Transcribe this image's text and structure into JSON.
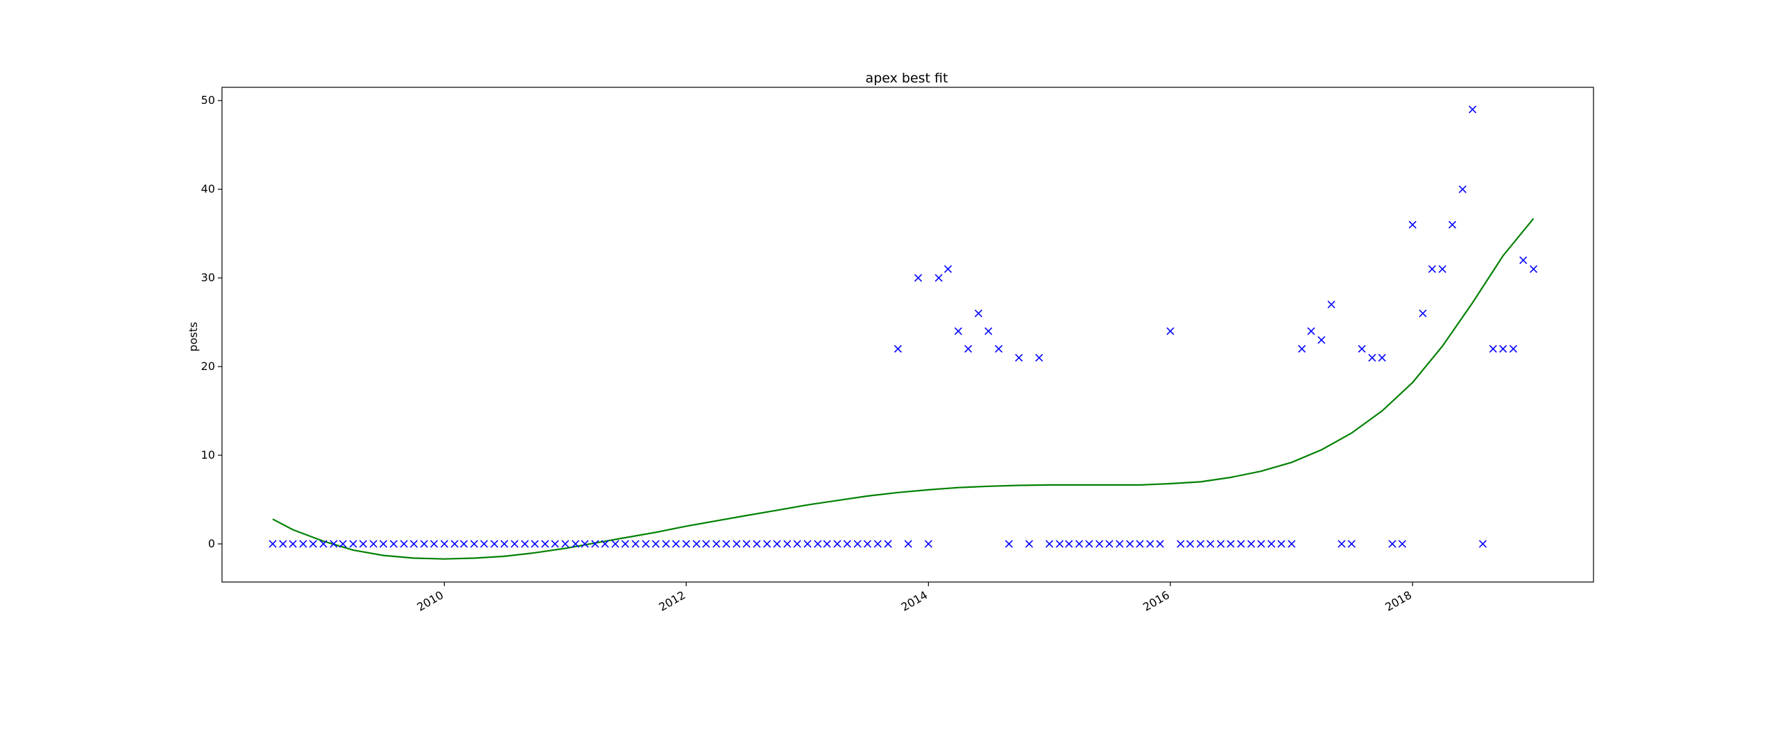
{
  "chart_data": {
    "type": "scatter",
    "title": "apex best fit",
    "xlabel": "",
    "ylabel": "posts",
    "x_axis_kind": "date",
    "xlim": [
      "2008-03-01",
      "2019-07-01"
    ],
    "ylim": [
      -4.3,
      51.5
    ],
    "x_ticks": [
      {
        "value": "2010-01-01",
        "label": "2010"
      },
      {
        "value": "2012-01-01",
        "label": "2012"
      },
      {
        "value": "2014-01-01",
        "label": "2014"
      },
      {
        "value": "2016-01-01",
        "label": "2016"
      },
      {
        "value": "2018-01-01",
        "label": "2018"
      }
    ],
    "y_ticks": [
      0,
      10,
      20,
      30,
      40,
      50
    ],
    "grid": false,
    "legend": null,
    "series": [
      {
        "kind": "scatter",
        "marker": "x",
        "color": "#0000ff",
        "points": [
          [
            "2008-08-01",
            0
          ],
          [
            "2008-09-01",
            0
          ],
          [
            "2008-10-01",
            0
          ],
          [
            "2008-11-01",
            0
          ],
          [
            "2008-12-01",
            0
          ],
          [
            "2009-01-01",
            0
          ],
          [
            "2009-02-01",
            0
          ],
          [
            "2009-03-01",
            0
          ],
          [
            "2009-04-01",
            0
          ],
          [
            "2009-05-01",
            0
          ],
          [
            "2009-06-01",
            0
          ],
          [
            "2009-07-01",
            0
          ],
          [
            "2009-08-01",
            0
          ],
          [
            "2009-09-01",
            0
          ],
          [
            "2009-10-01",
            0
          ],
          [
            "2009-11-01",
            0
          ],
          [
            "2009-12-01",
            0
          ],
          [
            "2010-01-01",
            0
          ],
          [
            "2010-02-01",
            0
          ],
          [
            "2010-03-01",
            0
          ],
          [
            "2010-04-01",
            0
          ],
          [
            "2010-05-01",
            0
          ],
          [
            "2010-06-01",
            0
          ],
          [
            "2010-07-01",
            0
          ],
          [
            "2010-08-01",
            0
          ],
          [
            "2010-09-01",
            0
          ],
          [
            "2010-10-01",
            0
          ],
          [
            "2010-11-01",
            0
          ],
          [
            "2010-12-01",
            0
          ],
          [
            "2011-01-01",
            0
          ],
          [
            "2011-02-01",
            0
          ],
          [
            "2011-03-01",
            0
          ],
          [
            "2011-04-01",
            0
          ],
          [
            "2011-05-01",
            0
          ],
          [
            "2011-06-01",
            0
          ],
          [
            "2011-07-01",
            0
          ],
          [
            "2011-08-01",
            0
          ],
          [
            "2011-09-01",
            0
          ],
          [
            "2011-10-01",
            0
          ],
          [
            "2011-11-01",
            0
          ],
          [
            "2011-12-01",
            0
          ],
          [
            "2012-01-01",
            0
          ],
          [
            "2012-02-01",
            0
          ],
          [
            "2012-03-01",
            0
          ],
          [
            "2012-04-01",
            0
          ],
          [
            "2012-05-01",
            0
          ],
          [
            "2012-06-01",
            0
          ],
          [
            "2012-07-01",
            0
          ],
          [
            "2012-08-01",
            0
          ],
          [
            "2012-09-01",
            0
          ],
          [
            "2012-10-01",
            0
          ],
          [
            "2012-11-01",
            0
          ],
          [
            "2012-12-01",
            0
          ],
          [
            "2013-01-01",
            0
          ],
          [
            "2013-02-01",
            0
          ],
          [
            "2013-03-01",
            0
          ],
          [
            "2013-04-01",
            0
          ],
          [
            "2013-05-01",
            0
          ],
          [
            "2013-06-01",
            0
          ],
          [
            "2013-07-01",
            0
          ],
          [
            "2013-08-01",
            0
          ],
          [
            "2013-09-01",
            0
          ],
          [
            "2013-10-01",
            22
          ],
          [
            "2013-11-01",
            0
          ],
          [
            "2013-12-01",
            30
          ],
          [
            "2014-01-01",
            0
          ],
          [
            "2014-02-01",
            30
          ],
          [
            "2014-03-01",
            31
          ],
          [
            "2014-04-01",
            24
          ],
          [
            "2014-05-01",
            22
          ],
          [
            "2014-06-01",
            26
          ],
          [
            "2014-07-01",
            24
          ],
          [
            "2014-08-01",
            22
          ],
          [
            "2014-09-01",
            0
          ],
          [
            "2014-10-01",
            21
          ],
          [
            "2014-11-01",
            0
          ],
          [
            "2014-12-01",
            21
          ],
          [
            "2015-01-01",
            0
          ],
          [
            "2015-02-01",
            0
          ],
          [
            "2015-03-01",
            0
          ],
          [
            "2015-04-01",
            0
          ],
          [
            "2015-05-01",
            0
          ],
          [
            "2015-06-01",
            0
          ],
          [
            "2015-07-01",
            0
          ],
          [
            "2015-08-01",
            0
          ],
          [
            "2015-09-01",
            0
          ],
          [
            "2015-10-01",
            0
          ],
          [
            "2015-11-01",
            0
          ],
          [
            "2015-12-01",
            0
          ],
          [
            "2016-01-01",
            24
          ],
          [
            "2016-02-01",
            0
          ],
          [
            "2016-03-01",
            0
          ],
          [
            "2016-04-01",
            0
          ],
          [
            "2016-05-01",
            0
          ],
          [
            "2016-06-01",
            0
          ],
          [
            "2016-07-01",
            0
          ],
          [
            "2016-08-01",
            0
          ],
          [
            "2016-09-01",
            0
          ],
          [
            "2016-10-01",
            0
          ],
          [
            "2016-11-01",
            0
          ],
          [
            "2016-12-01",
            0
          ],
          [
            "2017-01-01",
            0
          ],
          [
            "2017-02-01",
            22
          ],
          [
            "2017-03-01",
            24
          ],
          [
            "2017-04-01",
            23
          ],
          [
            "2017-05-01",
            27
          ],
          [
            "2017-06-01",
            0
          ],
          [
            "2017-07-01",
            0
          ],
          [
            "2017-08-01",
            22
          ],
          [
            "2017-09-01",
            21
          ],
          [
            "2017-10-01",
            21
          ],
          [
            "2017-11-01",
            0
          ],
          [
            "2017-12-01",
            0
          ],
          [
            "2018-01-01",
            36
          ],
          [
            "2018-02-01",
            26
          ],
          [
            "2018-03-01",
            31
          ],
          [
            "2018-04-01",
            31
          ],
          [
            "2018-05-01",
            36
          ],
          [
            "2018-06-01",
            40
          ],
          [
            "2018-07-01",
            49
          ],
          [
            "2018-08-01",
            0
          ],
          [
            "2018-09-01",
            22
          ],
          [
            "2018-10-01",
            22
          ],
          [
            "2018-11-01",
            22
          ],
          [
            "2018-12-01",
            32
          ],
          [
            "2019-01-01",
            31
          ]
        ]
      },
      {
        "kind": "line",
        "color": "#008000",
        "points": [
          [
            "2008-08-01",
            2.8
          ],
          [
            "2008-10-01",
            1.6
          ],
          [
            "2009-01-01",
            0.3
          ],
          [
            "2009-04-01",
            -0.7
          ],
          [
            "2009-07-01",
            -1.3
          ],
          [
            "2009-10-01",
            -1.6
          ],
          [
            "2010-01-01",
            -1.7
          ],
          [
            "2010-04-01",
            -1.6
          ],
          [
            "2010-07-01",
            -1.4
          ],
          [
            "2010-10-01",
            -1.0
          ],
          [
            "2011-01-01",
            -0.5
          ],
          [
            "2011-04-01",
            0.1
          ],
          [
            "2011-07-01",
            0.7
          ],
          [
            "2011-10-01",
            1.3
          ],
          [
            "2012-01-01",
            2.0
          ],
          [
            "2012-04-01",
            2.6
          ],
          [
            "2012-07-01",
            3.2
          ],
          [
            "2012-10-01",
            3.8
          ],
          [
            "2013-01-01",
            4.4
          ],
          [
            "2013-04-01",
            4.9
          ],
          [
            "2013-07-01",
            5.4
          ],
          [
            "2013-10-01",
            5.8
          ],
          [
            "2014-01-01",
            6.1
          ],
          [
            "2014-04-01",
            6.35
          ],
          [
            "2014-07-01",
            6.5
          ],
          [
            "2014-10-01",
            6.6
          ],
          [
            "2015-01-01",
            6.65
          ],
          [
            "2015-04-01",
            6.65
          ],
          [
            "2015-07-01",
            6.65
          ],
          [
            "2015-10-01",
            6.65
          ],
          [
            "2016-01-01",
            6.8
          ],
          [
            "2016-04-01",
            7.0
          ],
          [
            "2016-07-01",
            7.5
          ],
          [
            "2016-10-01",
            8.2
          ],
          [
            "2017-01-01",
            9.2
          ],
          [
            "2017-04-01",
            10.6
          ],
          [
            "2017-07-01",
            12.5
          ],
          [
            "2017-10-01",
            15.0
          ],
          [
            "2018-01-01",
            18.2
          ],
          [
            "2018-04-01",
            22.3
          ],
          [
            "2018-07-01",
            27.2
          ],
          [
            "2018-10-01",
            32.5
          ],
          [
            "2019-01-01",
            36.7
          ]
        ]
      }
    ]
  }
}
